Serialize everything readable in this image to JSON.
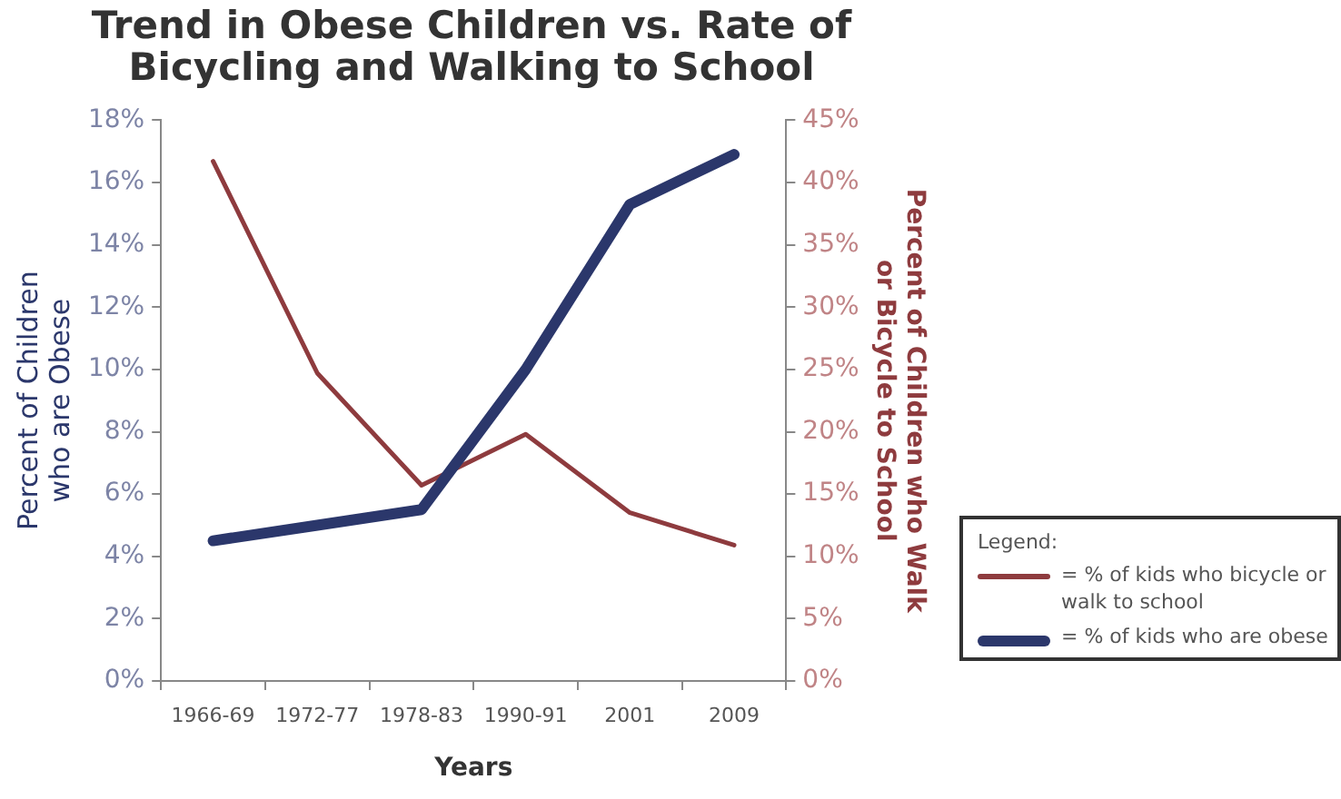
{
  "chart_data": {
    "type": "line",
    "title": "Trend in Obese Children vs. Rate of Bicycling and Walking to School",
    "xlabel": "Years",
    "ylabel": "Percent of Children who are Obese",
    "y2label": "Percent of Children who Walk or Bicycle to School",
    "legend_title": "Legend:",
    "legend": "bottom right",
    "grid": false,
    "marker": "none",
    "line_style": "solid",
    "categories": [
      "1966-69",
      "1972-77",
      "1978-83",
      "1990-91",
      "2001",
      "2009"
    ],
    "ylim": [
      0,
      18
    ],
    "yticks": [
      {
        "value": 0,
        "label": "0%"
      },
      {
        "value": 2,
        "label": "2%"
      },
      {
        "value": 4,
        "label": "4%"
      },
      {
        "value": 6,
        "label": "6%"
      },
      {
        "value": 8,
        "label": "8%"
      },
      {
        "value": 10,
        "label": "10%"
      },
      {
        "value": 12,
        "label": "12%"
      },
      {
        "value": 14,
        "label": "14%"
      },
      {
        "value": 16,
        "label": "16%"
      },
      {
        "value": 18,
        "label": "18%"
      }
    ],
    "y2lim": [
      0,
      45
    ],
    "y2ticks": [
      {
        "value": 0,
        "label": "0%"
      },
      {
        "value": 5,
        "label": "5%"
      },
      {
        "value": 10,
        "label": "10%"
      },
      {
        "value": 15,
        "label": "15%"
      },
      {
        "value": 20,
        "label": "20%"
      },
      {
        "value": 25,
        "label": "25%"
      },
      {
        "value": 30,
        "label": "30%"
      },
      {
        "value": 35,
        "label": "35%"
      },
      {
        "value": 40,
        "label": "40%"
      },
      {
        "value": 45,
        "label": "45%"
      }
    ],
    "series": [
      {
        "name": "= % of kids who bicycle or walk to school",
        "color": "#8e3b3e",
        "axis": "y2",
        "values": [
          41.7,
          24.7,
          15.7,
          19.8,
          13.5,
          10.9
        ]
      },
      {
        "name": "= % of kids who are obese",
        "color": "#2b376b",
        "axis": "y",
        "values": [
          4.5,
          5.0,
          5.5,
          10.0,
          15.3,
          16.9
        ]
      }
    ]
  }
}
